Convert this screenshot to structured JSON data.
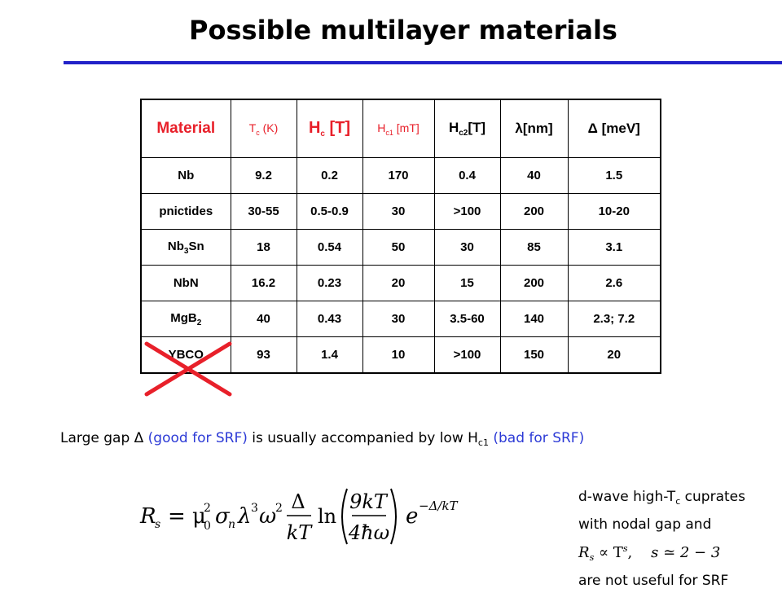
{
  "title": "Possible multilayer materials",
  "accent_color": "#2222c8",
  "header_color": "#e8202a",
  "table": {
    "headers": {
      "material": "Material",
      "tc": {
        "main": "T",
        "sub": "c",
        "rest": " (K)"
      },
      "hc": {
        "main": "H",
        "sub": "c",
        "rest": " [T]"
      },
      "hc1": {
        "main": "H",
        "sub": "c1",
        "rest": " [mT]"
      },
      "hc2": {
        "main": "H",
        "sub": "c2",
        "rest": "[T]"
      },
      "lambda": "λ[nm]",
      "delta": "Δ [meV]"
    },
    "rows": [
      {
        "material": "Nb",
        "material_sub": "",
        "material_tail": "",
        "tc": "9.2",
        "hc": "0.2",
        "hc1": "170",
        "hc2": "0.4",
        "lambda": "40",
        "delta": "1.5"
      },
      {
        "material": "pnictides",
        "material_sub": "",
        "material_tail": "",
        "tc": "30-55",
        "hc": "0.5-0.9",
        "hc1": "30",
        "hc2": ">100",
        "lambda": "200",
        "delta": "10-20"
      },
      {
        "material": "Nb",
        "material_sub": "3",
        "material_tail": "Sn",
        "tc": "18",
        "hc": "0.54",
        "hc1": "50",
        "hc2": "30",
        "lambda": "85",
        "delta": "3.1"
      },
      {
        "material": "NbN",
        "material_sub": "",
        "material_tail": "",
        "tc": "16.2",
        "hc": "0.23",
        "hc1": "20",
        "hc2": "15",
        "lambda": "200",
        "delta": "2.6"
      },
      {
        "material": "MgB",
        "material_sub": "2",
        "material_tail": "",
        "tc": "40",
        "hc": "0.43",
        "hc1": "30",
        "hc2": "3.5-60",
        "lambda": "140",
        "delta": "2.3; 7.2"
      },
      {
        "material": "YBCO",
        "material_sub": "",
        "material_tail": "",
        "tc": "93",
        "hc": "1.4",
        "hc1": "10",
        "hc2": ">100",
        "lambda": "150",
        "delta": "20"
      }
    ]
  },
  "note": {
    "part1": "Large gap Δ ",
    "part2": "(good for SRF)",
    "part3": " is usually accompanied by low H",
    "sub": "c1",
    "part4": " ",
    "part5": "(bad for SRF)"
  },
  "side_note": {
    "line1_a": "d-wave high-T",
    "line1_sub": "c",
    "line1_b": " cuprates",
    "line2": "with nodal gap and",
    "line3_rel": "R",
    "line3_rel_sub": "s",
    "line3_rel_b": " ∝ T",
    "line3_rel_sup": "s",
    "line3_cond": "s ≃ 2 − 3",
    "line4": "are not useful for SRF"
  },
  "formula": {
    "lhs": "R",
    "lhs_sub": "s",
    "mu": "= μ",
    "mu_sup": "2",
    "mu_sub": "0",
    "sigma": "σ",
    "sigma_sub": "n",
    "lambda": "λ",
    "lambda_sup": "3",
    "omega": "ω",
    "omega_sup": "2",
    "frac1_num": "Δ",
    "frac1_den": "kT",
    "ln": "ln",
    "frac2_num": "9kT",
    "frac2_den": "4ħω",
    "exp_base": "e",
    "exp_sup": "−Δ/kT"
  }
}
